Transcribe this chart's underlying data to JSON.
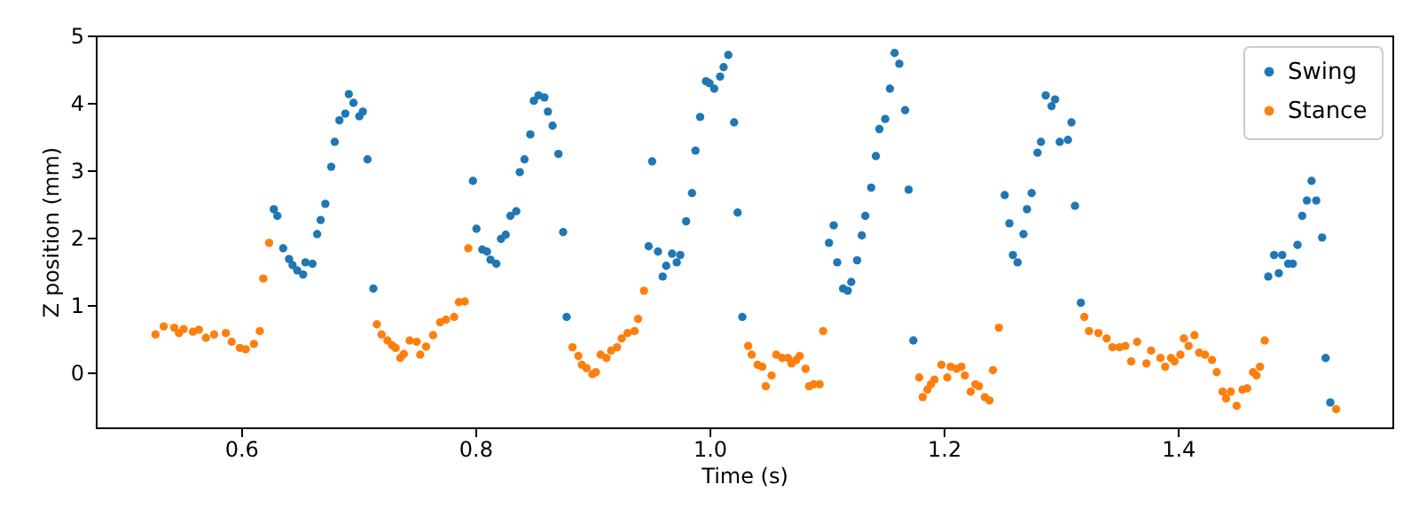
{
  "chart_data": {
    "type": "scatter",
    "xlabel": "Time (s)",
    "ylabel": "Z position (mm)",
    "xlim": [
      0.476,
      1.583
    ],
    "ylim": [
      -0.82,
      5.0
    ],
    "xticks": [
      {
        "value": 0.6,
        "label": "0.6"
      },
      {
        "value": 0.8,
        "label": "0.8"
      },
      {
        "value": 1.0,
        "label": "1.0"
      },
      {
        "value": 1.2,
        "label": "1.2"
      },
      {
        "value": 1.4,
        "label": "1.4"
      }
    ],
    "yticks": [
      0,
      1,
      2,
      3,
      4,
      5
    ],
    "grid": false,
    "legend": "top right",
    "marker": "circle",
    "series": [
      {
        "name": "Swing",
        "color": "#1f77b4",
        "x": [
          0.628,
          0.631,
          0.636,
          0.641,
          0.644,
          0.648,
          0.653,
          0.655,
          0.661,
          0.665,
          0.668,
          0.672,
          0.677,
          0.68,
          0.684,
          0.689,
          0.692,
          0.696,
          0.701,
          0.704,
          0.708,
          0.713,
          0.798,
          0.801,
          0.806,
          0.81,
          0.813,
          0.818,
          0.822,
          0.826,
          0.83,
          0.835,
          0.838,
          0.842,
          0.847,
          0.85,
          0.854,
          0.859,
          0.862,
          0.866,
          0.871,
          0.875,
          0.878,
          0.948,
          0.951,
          0.956,
          0.96,
          0.963,
          0.968,
          0.972,
          0.975,
          0.98,
          0.985,
          0.988,
          0.992,
          0.997,
          1.0,
          1.004,
          1.009,
          1.012,
          1.016,
          1.021,
          1.024,
          1.028,
          1.102,
          1.106,
          1.109,
          1.114,
          1.118,
          1.121,
          1.126,
          1.13,
          1.133,
          1.138,
          1.142,
          1.145,
          1.15,
          1.154,
          1.158,
          1.162,
          1.167,
          1.17,
          1.174,
          1.252,
          1.256,
          1.259,
          1.263,
          1.268,
          1.271,
          1.275,
          1.28,
          1.283,
          1.287,
          1.292,
          1.295,
          1.299,
          1.306,
          1.309,
          1.312,
          1.317,
          1.477,
          1.482,
          1.486,
          1.489,
          1.494,
          1.498,
          1.502,
          1.506,
          1.51,
          1.514,
          1.518,
          1.523,
          1.526,
          1.53
        ],
        "values": [
          2.42,
          2.32,
          1.84,
          1.68,
          1.59,
          1.51,
          1.45,
          1.63,
          1.61,
          2.05,
          2.26,
          2.5,
          3.05,
          3.42,
          3.74,
          3.84,
          4.13,
          4.0,
          3.8,
          3.87,
          3.16,
          1.24,
          2.84,
          2.13,
          1.82,
          1.79,
          1.67,
          1.61,
          1.98,
          2.04,
          2.32,
          2.39,
          2.97,
          3.16,
          3.53,
          4.03,
          4.11,
          4.08,
          3.87,
          3.66,
          3.24,
          2.08,
          0.82,
          1.87,
          3.13,
          1.79,
          1.42,
          1.58,
          1.76,
          1.63,
          1.74,
          2.24,
          2.66,
          3.29,
          3.79,
          4.32,
          4.29,
          4.21,
          4.39,
          4.53,
          4.71,
          3.71,
          2.37,
          0.82,
          1.92,
          2.18,
          1.63,
          1.24,
          1.21,
          1.34,
          1.66,
          2.03,
          2.32,
          2.74,
          3.21,
          3.61,
          3.76,
          4.21,
          4.74,
          4.58,
          3.89,
          2.71,
          0.47,
          2.63,
          2.21,
          1.74,
          1.63,
          2.05,
          2.42,
          2.66,
          3.26,
          3.42,
          4.11,
          3.95,
          4.05,
          3.42,
          3.45,
          3.71,
          2.47,
          1.03,
          1.42,
          1.74,
          1.47,
          1.74,
          1.61,
          1.61,
          1.89,
          2.32,
          2.55,
          2.84,
          2.55,
          2.0,
          0.21,
          -0.45
        ]
      },
      {
        "name": "Stance",
        "color": "#ff7f0e",
        "x": [
          0.527,
          0.534,
          0.543,
          0.547,
          0.551,
          0.559,
          0.564,
          0.57,
          0.577,
          0.587,
          0.592,
          0.599,
          0.604,
          0.611,
          0.616,
          0.619,
          0.624,
          0.716,
          0.72,
          0.725,
          0.729,
          0.732,
          0.736,
          0.739,
          0.744,
          0.75,
          0.753,
          0.758,
          0.764,
          0.77,
          0.775,
          0.782,
          0.786,
          0.791,
          0.794,
          0.883,
          0.888,
          0.891,
          0.895,
          0.9,
          0.903,
          0.907,
          0.912,
          0.916,
          0.921,
          0.925,
          0.93,
          0.936,
          0.939,
          0.944,
          1.033,
          1.036,
          1.041,
          1.045,
          1.048,
          1.053,
          1.057,
          1.062,
          1.067,
          1.07,
          1.074,
          1.077,
          1.082,
          1.085,
          1.089,
          1.094,
          1.097,
          1.179,
          1.182,
          1.186,
          1.189,
          1.192,
          1.198,
          1.203,
          1.206,
          1.211,
          1.215,
          1.218,
          1.223,
          1.227,
          1.23,
          1.235,
          1.239,
          1.242,
          1.247,
          1.32,
          1.324,
          1.332,
          1.339,
          1.344,
          1.35,
          1.355,
          1.36,
          1.365,
          1.373,
          1.377,
          1.385,
          1.389,
          1.394,
          1.397,
          1.402,
          1.405,
          1.409,
          1.414,
          1.418,
          1.423,
          1.429,
          1.433,
          1.438,
          1.441,
          1.445,
          1.45,
          1.455,
          1.459,
          1.464,
          1.467,
          1.47,
          1.474,
          1.535
        ],
        "values": [
          0.56,
          0.68,
          0.66,
          0.58,
          0.64,
          0.6,
          0.63,
          0.51,
          0.56,
          0.58,
          0.45,
          0.36,
          0.34,
          0.42,
          0.61,
          1.39,
          1.92,
          0.71,
          0.56,
          0.47,
          0.4,
          0.36,
          0.21,
          0.27,
          0.47,
          0.45,
          0.26,
          0.38,
          0.55,
          0.74,
          0.78,
          0.82,
          1.04,
          1.05,
          1.84,
          0.37,
          0.24,
          0.11,
          0.06,
          -0.03,
          0.0,
          0.26,
          0.21,
          0.32,
          0.37,
          0.5,
          0.58,
          0.61,
          0.79,
          1.21,
          0.39,
          0.26,
          0.11,
          0.08,
          -0.21,
          -0.05,
          0.26,
          0.21,
          0.21,
          0.13,
          0.18,
          0.24,
          0.05,
          -0.21,
          -0.18,
          -0.18,
          0.61,
          -0.08,
          -0.37,
          -0.26,
          -0.18,
          -0.11,
          0.11,
          -0.08,
          0.08,
          0.05,
          0.08,
          -0.05,
          -0.29,
          -0.18,
          -0.21,
          -0.37,
          -0.42,
          0.03,
          0.66,
          0.82,
          0.61,
          0.58,
          0.5,
          0.37,
          0.37,
          0.39,
          0.16,
          0.45,
          0.13,
          0.32,
          0.21,
          0.08,
          0.21,
          0.16,
          0.26,
          0.5,
          0.39,
          0.55,
          0.29,
          0.26,
          0.18,
          0.0,
          -0.29,
          -0.39,
          -0.29,
          -0.5,
          -0.26,
          -0.24,
          0.0,
          -0.05,
          0.08,
          0.47,
          -0.55
        ]
      }
    ]
  }
}
